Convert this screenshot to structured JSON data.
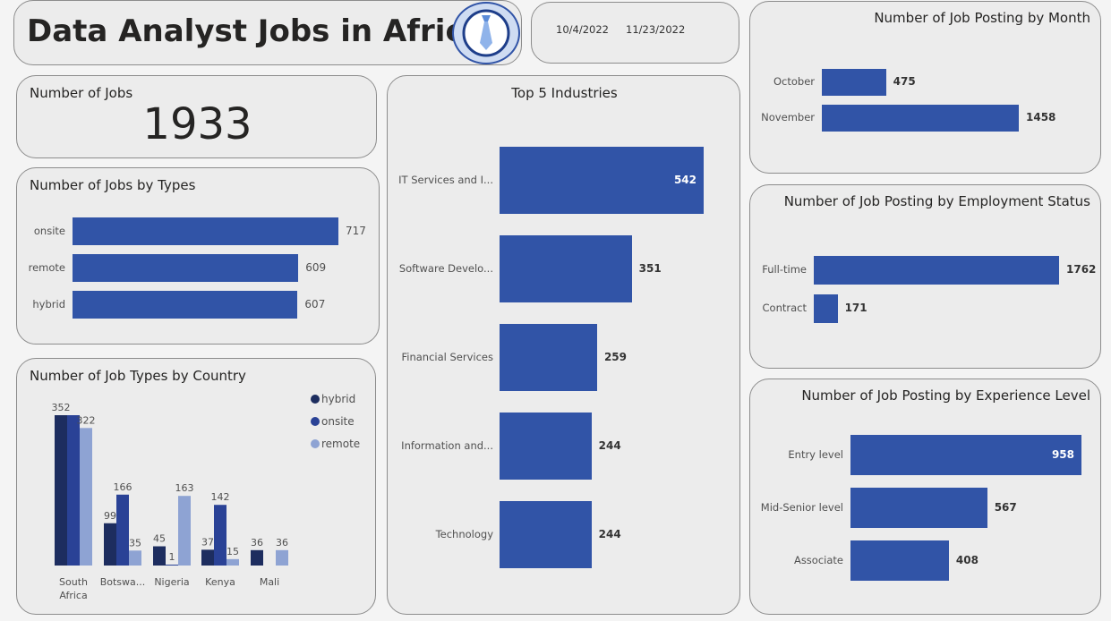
{
  "header": {
    "title": "Data Analyst Jobs in Africa",
    "logo_icon": "tie-icon",
    "date_start": "10/4/2022",
    "date_end": "11/23/2022"
  },
  "kpi": {
    "label": "Number of Jobs",
    "value": "1933"
  },
  "colors": {
    "primary": "#3154a7",
    "hybrid": "#1d2d5f",
    "onsite": "#2a4296",
    "remote": "#8ea3d3"
  },
  "charts": {
    "types": {
      "type": "bar",
      "title": "Number of Jobs by Types",
      "categories": [
        "onsite",
        "remote",
        "hybrid"
      ],
      "values": [
        717,
        609,
        607
      ],
      "value_labels": [
        "717",
        "609",
        "607"
      ]
    },
    "country": {
      "type": "bar",
      "title": "Number of Job Types by Country",
      "categories": [
        "South Africa",
        "Botswa...",
        "Nigeria",
        "Kenya",
        "Mali"
      ],
      "category_lines": [
        [
          "South",
          "Africa"
        ],
        [
          "Botswa..."
        ],
        [
          "Nigeria"
        ],
        [
          "Kenya"
        ],
        [
          "Mali"
        ]
      ],
      "legend": [
        "hybrid",
        "onsite",
        "remote"
      ],
      "legend_placement": "top-right",
      "series": [
        {
          "name": "hybrid",
          "values": [
            352,
            99,
            45,
            37,
            36
          ],
          "labels": [
            "352",
            "99",
            "45",
            "37",
            "36"
          ]
        },
        {
          "name": "onsite",
          "values": [
            352,
            166,
            1,
            142,
            null
          ],
          "labels": [
            "",
            "166",
            "1",
            "142",
            ""
          ]
        },
        {
          "name": "remote",
          "values": [
            322,
            35,
            163,
            15,
            36
          ],
          "labels": [
            "322",
            "35",
            "163",
            "15",
            "36"
          ]
        }
      ],
      "ylim": [
        0,
        352
      ]
    },
    "industries": {
      "type": "bar",
      "title": "Top 5 Industries",
      "categories": [
        "IT Services and I...",
        "Software Develo...",
        "Financial Services",
        "Information and...",
        "Technology"
      ],
      "values": [
        542,
        351,
        259,
        244,
        244
      ],
      "value_labels": [
        "542",
        "351",
        "259",
        "244",
        "244"
      ]
    },
    "month": {
      "type": "bar",
      "title": "Number of Job Posting by Month",
      "categories": [
        "October",
        "November"
      ],
      "values": [
        475,
        1458
      ],
      "value_labels": [
        "475",
        "1458"
      ]
    },
    "employment": {
      "type": "bar",
      "title": "Number of Job Posting by Employment Status",
      "categories": [
        "Full-time",
        "Contract"
      ],
      "values": [
        1762,
        171
      ],
      "value_labels": [
        "1762",
        "171"
      ]
    },
    "experience": {
      "type": "bar",
      "title": "Number of Job Posting by Experience Level",
      "categories": [
        "Entry level",
        "Mid-Senior level",
        "Associate"
      ],
      "values": [
        958,
        567,
        408
      ],
      "value_labels": [
        "958",
        "567",
        "408"
      ]
    }
  },
  "chart_data": [
    {
      "type": "bar",
      "title": "Number of Jobs by Types",
      "categories": [
        "onsite",
        "remote",
        "hybrid"
      ],
      "values": [
        717,
        609,
        607
      ]
    },
    {
      "type": "bar",
      "title": "Number of Job Types by Country",
      "categories": [
        "South Africa",
        "Botswa...",
        "Nigeria",
        "Kenya",
        "Mali"
      ],
      "series": [
        {
          "name": "hybrid",
          "values": [
            352,
            99,
            45,
            37,
            36
          ]
        },
        {
          "name": "onsite",
          "values": [
            352,
            166,
            1,
            142,
            null
          ]
        },
        {
          "name": "remote",
          "values": [
            322,
            35,
            163,
            15,
            36
          ]
        }
      ]
    },
    {
      "type": "bar",
      "title": "Top 5 Industries",
      "categories": [
        "IT Services and I...",
        "Software Develo...",
        "Financial Services",
        "Information and...",
        "Technology"
      ],
      "values": [
        542,
        351,
        259,
        244,
        244
      ]
    },
    {
      "type": "bar",
      "title": "Number of Job Posting by Month",
      "categories": [
        "October",
        "November"
      ],
      "values": [
        475,
        1458
      ]
    },
    {
      "type": "bar",
      "title": "Number of Job Posting by Employment Status",
      "categories": [
        "Full-time",
        "Contract"
      ],
      "values": [
        1762,
        171
      ]
    },
    {
      "type": "bar",
      "title": "Number of Job Posting by Experience Level",
      "categories": [
        "Entry level",
        "Mid-Senior level",
        "Associate"
      ],
      "values": [
        958,
        567,
        408
      ]
    }
  ]
}
